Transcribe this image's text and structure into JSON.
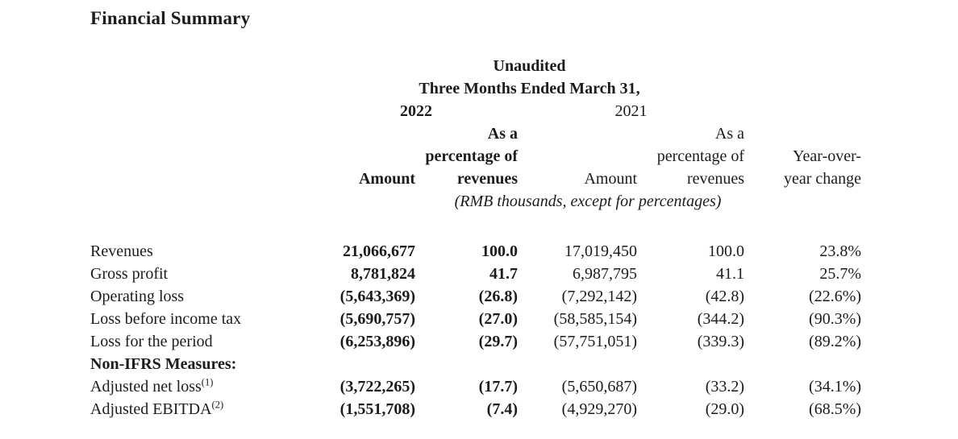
{
  "document": {
    "title": "Financial Summary"
  },
  "table": {
    "unaudited_label": "Unaudited",
    "period_label": "Three Months Ended March 31,",
    "year_left": "2022",
    "year_right": "2021",
    "columns": {
      "amount_2022": "Amount",
      "pct_2022": "As a\npercentage of\nrevenues",
      "amount_2021": "Amount",
      "pct_2021": "As a\npercentage of\nrevenues",
      "yoy": "Year-over-\nyear change"
    },
    "units_note": "(RMB thousands, except for percentages)",
    "rows": [
      {
        "label": "Revenues",
        "sup": "",
        "amount_2022": "21,066,677",
        "pct_2022": "100.0",
        "amount_2021": "17,019,450",
        "pct_2021": "100.0",
        "yoy": "23.8%"
      },
      {
        "label": "Gross profit",
        "sup": "",
        "amount_2022": "8,781,824",
        "pct_2022": "41.7",
        "amount_2021": "6,987,795",
        "pct_2021": "41.1",
        "yoy": "25.7%"
      },
      {
        "label": "Operating loss",
        "sup": "",
        "amount_2022": "(5,643,369)",
        "pct_2022": "(26.8)",
        "amount_2021": "(7,292,142)",
        "pct_2021": "(42.8)",
        "yoy": "(22.6%)"
      },
      {
        "label": "Loss before income tax",
        "sup": "",
        "amount_2022": "(5,690,757)",
        "pct_2022": "(27.0)",
        "amount_2021": "(58,585,154)",
        "pct_2021": "(344.2)",
        "yoy": "(90.3%)"
      },
      {
        "label": "Loss for the period",
        "sup": "",
        "amount_2022": "(6,253,896)",
        "pct_2022": "(29.7)",
        "amount_2021": "(57,751,051)",
        "pct_2021": "(339.3)",
        "yoy": "(89.2%)"
      },
      {
        "label": "Non-IFRS Measures:",
        "sup": "",
        "amount_2022": "",
        "pct_2022": "",
        "amount_2021": "",
        "pct_2021": "",
        "yoy": ""
      },
      {
        "label": "Adjusted net loss",
        "sup": "(1)",
        "amount_2022": "(3,722,265)",
        "pct_2022": "(17.7)",
        "amount_2021": "(5,650,687)",
        "pct_2021": "(33.2)",
        "yoy": "(34.1%)"
      },
      {
        "label": "Adjusted EBITDA",
        "sup": "(2)",
        "amount_2022": "(1,551,708)",
        "pct_2022": "(7.4)",
        "amount_2021": "(4,929,270)",
        "pct_2021": "(29.0)",
        "yoy": "(68.5%)"
      }
    ]
  },
  "colors": {
    "text": "#1c1c1c",
    "background": "#ffffff"
  }
}
